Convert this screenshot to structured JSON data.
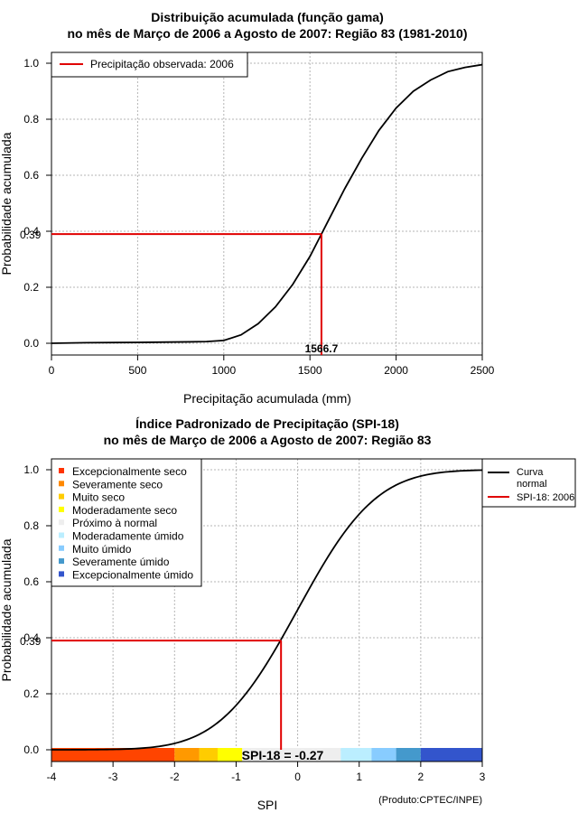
{
  "chart_data": [
    {
      "type": "line",
      "title_line1": "Distribuição acumulada (função gama)",
      "title_line2": "no mês de Março de 2006 a Agosto de 2007: Região 83 (1981-2010)",
      "xlabel": "Precipitação acumulada (mm)",
      "ylabel": "Probabilidade acumulada",
      "xlim": [
        0,
        2500
      ],
      "ylim": [
        0,
        1
      ],
      "x_ticks": [
        "0",
        "500",
        "1000",
        "1500",
        "2000",
        "2500"
      ],
      "y_ticks": [
        "0.0",
        "0.2",
        "0.4",
        "0.6",
        "0.8",
        "1.0"
      ],
      "grid": true,
      "legend_position": "top-left",
      "legend": [
        {
          "label": "Precipitação observada: 2006",
          "color": "#e00000"
        }
      ],
      "curve": {
        "color": "#000000",
        "x": [
          0,
          200,
          500,
          800,
          900,
          1000,
          1100,
          1200,
          1300,
          1400,
          1500,
          1566.7,
          1600,
          1700,
          1800,
          1900,
          2000,
          2100,
          2200,
          2300,
          2400,
          2500
        ],
        "y": [
          0,
          0.002,
          0.003,
          0.005,
          0.006,
          0.01,
          0.03,
          0.07,
          0.13,
          0.21,
          0.31,
          0.39,
          0.43,
          0.55,
          0.66,
          0.76,
          0.84,
          0.9,
          0.94,
          0.97,
          0.985,
          0.995
        ]
      },
      "observed": {
        "x": 1566.7,
        "y": 0.39,
        "x_label": "1566.7",
        "y_label": "0.39"
      }
    },
    {
      "type": "line",
      "title_line1": "Índice Padronizado de Precipitação (SPI-18)",
      "title_line2": "no mês de Março de 2006 a Agosto de 2007: Região 83",
      "xlabel": "SPI",
      "ylabel": "Probabilidade acumulada",
      "xlim": [
        -4,
        3
      ],
      "ylim": [
        0,
        1
      ],
      "x_ticks": [
        "-4",
        "-3",
        "-2",
        "-1",
        "0",
        "1",
        "2",
        "3"
      ],
      "y_ticks": [
        "0.0",
        "0.2",
        "0.4",
        "0.6",
        "0.8",
        "1.0"
      ],
      "grid": true,
      "category_legend": [
        {
          "label": "Excepcionalmente seco",
          "color": "#ff3300"
        },
        {
          "label": "Severamente seco",
          "color": "#ff8800"
        },
        {
          "label": "Muito seco",
          "color": "#ffcc00"
        },
        {
          "label": "Moderadamente seco",
          "color": "#ffff00"
        },
        {
          "label": "Próximo à normal",
          "color": "#eeeeee"
        },
        {
          "label": "Moderadamente úmido",
          "color": "#bbeeff"
        },
        {
          "label": "Muito úmido",
          "color": "#88ccff"
        },
        {
          "label": "Severamente úmido",
          "color": "#4499cc"
        },
        {
          "label": "Excepcionalmente úmido",
          "color": "#3355cc"
        }
      ],
      "line_legend": [
        {
          "label_line1": "Curva",
          "label_line2": "normal",
          "color": "#000000"
        },
        {
          "label_line1": "SPI-18: 2006",
          "label_line2": "",
          "color": "#e00000"
        }
      ],
      "color_bar": [
        {
          "from": -4,
          "to": -2,
          "color": "#ff4400"
        },
        {
          "from": -2,
          "to": -1.6,
          "color": "#ff9900"
        },
        {
          "from": -1.6,
          "to": -1.3,
          "color": "#ffcc00"
        },
        {
          "from": -1.3,
          "to": -0.9,
          "color": "#ffff00"
        },
        {
          "from": -0.9,
          "to": 0.7,
          "color": "#eeeeee"
        },
        {
          "from": 0.7,
          "to": 1.2,
          "color": "#bbeeff"
        },
        {
          "from": 1.2,
          "to": 1.6,
          "color": "#88ccff"
        },
        {
          "from": 1.6,
          "to": 2,
          "color": "#4499cc"
        },
        {
          "from": 2,
          "to": 3,
          "color": "#3355cc"
        }
      ],
      "observed": {
        "x": -0.27,
        "y": 0.39,
        "spi_label": "SPI-18 = -0.27",
        "y_label": "0.39"
      },
      "credit": "(Produto:CPTEC/INPE)"
    }
  ]
}
